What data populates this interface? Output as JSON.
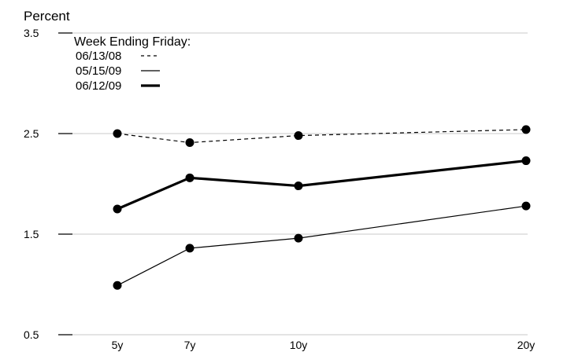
{
  "chart_data": {
    "type": "line",
    "ylabel": "Percent",
    "ylim": [
      0.5,
      3.5
    ],
    "yticks": [
      "3.5",
      "2.5",
      "1.5",
      "0.5"
    ],
    "ytick_values": [
      3.5,
      2.5,
      1.5,
      0.5
    ],
    "xticks": [
      "5y",
      "7y",
      "10y",
      "20y"
    ],
    "x": [
      5,
      7,
      10,
      20
    ],
    "grid": true,
    "legend": {
      "title": "Week Ending Friday:",
      "placement": "top-left"
    },
    "series": [
      {
        "name": "06/13/08",
        "style": "dashed",
        "values": [
          2.5,
          2.41,
          2.48,
          2.54
        ]
      },
      {
        "name": "05/15/09",
        "style": "thin",
        "values": [
          0.99,
          1.36,
          1.46,
          1.78
        ]
      },
      {
        "name": "06/12/09",
        "style": "thick",
        "values": [
          1.75,
          2.06,
          1.98,
          2.23
        ]
      }
    ]
  }
}
